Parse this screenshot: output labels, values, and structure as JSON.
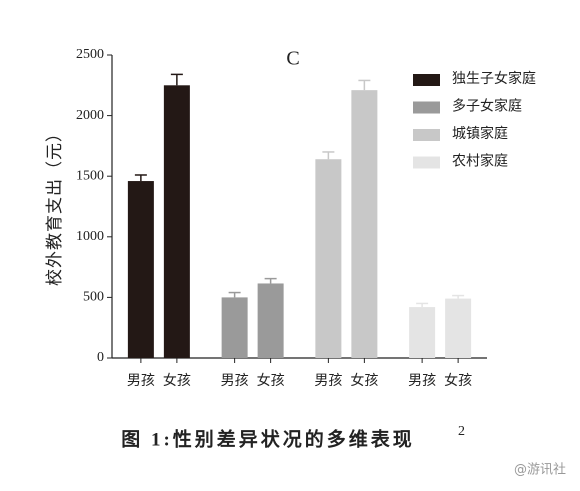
{
  "chart_data": {
    "type": "bar",
    "panel_label": "C",
    "y_axis_label": "校外教育支出（元）",
    "categories": [
      "男孩",
      "女孩"
    ],
    "series": [
      {
        "name": "独生子女家庭",
        "color": "#231815",
        "values": [
          1460,
          2250
        ],
        "errors": [
          50,
          90
        ]
      },
      {
        "name": "多子女家庭",
        "color": "#9a9a9a",
        "values": [
          500,
          615
        ],
        "errors": [
          40,
          40
        ]
      },
      {
        "name": "城镇家庭",
        "color": "#c8c8c8",
        "values": [
          1640,
          2210
        ],
        "errors": [
          60,
          80
        ]
      },
      {
        "name": "农村家庭",
        "color": "#e4e4e4",
        "values": [
          420,
          490
        ],
        "errors": [
          30,
          25
        ]
      }
    ],
    "ylim": [
      0,
      2500
    ],
    "yticks": [
      0,
      500,
      1000,
      1500,
      2000,
      2500
    ],
    "grid": false,
    "legend_position": "upper-right",
    "caption": "图 1:性别差异状况的多维表现",
    "caption_superscript": "2",
    "watermark": "@游讯社"
  }
}
